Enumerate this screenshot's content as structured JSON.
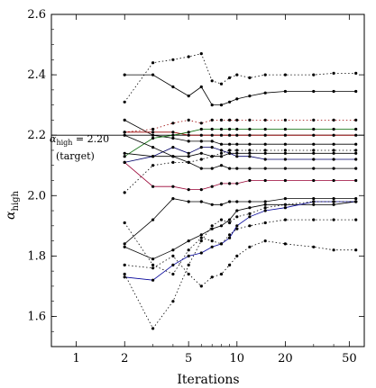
{
  "chart_data": {
    "type": "line",
    "xscale": "log",
    "xlim": [
      0.7,
      62
    ],
    "ylim": [
      1.5,
      2.6
    ],
    "xticks": [
      1,
      2,
      5,
      10,
      20,
      50
    ],
    "xtick_labels": [
      "1",
      "2",
      "5",
      "10",
      "20",
      "50"
    ],
    "yticks": [
      1.6,
      1.8,
      2.0,
      2.2,
      2.4,
      2.6
    ],
    "ytick_labels": [
      "1.6",
      "1.8",
      "2.0",
      "2.2",
      "2.4",
      "2.6"
    ],
    "xlabel": "Iterations",
    "ylabel_base": "α",
    "ylabel_sub": "high",
    "grid": false,
    "target": {
      "value": 2.2,
      "label_prefix": "α",
      "label_sub": "high",
      "label_value": " = 2.20",
      "label_note": "(target)"
    },
    "series": [
      {
        "style": "solid",
        "color": "#000000",
        "x": [
          2,
          3,
          4,
          5,
          6,
          7,
          8,
          9,
          10,
          12,
          15,
          20,
          30,
          40,
          55
        ],
        "y": [
          2.4,
          2.4,
          2.36,
          2.33,
          2.36,
          2.3,
          2.3,
          2.31,
          2.32,
          2.33,
          2.34,
          2.345,
          2.345,
          2.345,
          2.345
        ]
      },
      {
        "style": "dotted",
        "color": "#000000",
        "x": [
          2,
          3,
          4,
          5,
          6,
          7,
          8,
          9,
          10,
          12,
          15,
          20,
          30,
          40,
          55
        ],
        "y": [
          2.31,
          2.44,
          2.45,
          2.46,
          2.47,
          2.38,
          2.37,
          2.39,
          2.4,
          2.39,
          2.4,
          2.4,
          2.4,
          2.405,
          2.405
        ]
      },
      {
        "style": "solid",
        "color": "#000000",
        "x": [
          2,
          3,
          4,
          5,
          6,
          7,
          8,
          9,
          10,
          12,
          15,
          20,
          30,
          40,
          55
        ],
        "y": [
          2.25,
          2.2,
          2.19,
          2.18,
          2.18,
          2.18,
          2.17,
          2.17,
          2.17,
          2.17,
          2.17,
          2.17,
          2.17,
          2.17,
          2.17
        ]
      },
      {
        "style": "solid",
        "color": "#990000",
        "x": [
          2,
          3,
          4,
          5,
          6,
          7,
          8,
          9,
          10,
          12,
          15,
          20,
          30,
          40,
          55
        ],
        "y": [
          2.21,
          2.21,
          2.21,
          2.2,
          2.2,
          2.2,
          2.2,
          2.2,
          2.2,
          2.2,
          2.2,
          2.2,
          2.2,
          2.2,
          2.2
        ]
      },
      {
        "style": "dotted",
        "color": "#990000",
        "x": [
          2,
          3,
          4,
          5,
          6,
          7,
          8,
          9,
          10,
          12,
          15,
          20,
          30,
          40,
          55
        ],
        "y": [
          2.21,
          2.22,
          2.24,
          2.25,
          2.24,
          2.25,
          2.25,
          2.25,
          2.25,
          2.25,
          2.25,
          2.25,
          2.25,
          2.25,
          2.25
        ]
      },
      {
        "style": "solid",
        "color": "#006600",
        "x": [
          2,
          3,
          4,
          5,
          6,
          7,
          8,
          9,
          10,
          12,
          15,
          20,
          30,
          40,
          55
        ],
        "y": [
          2.13,
          2.19,
          2.2,
          2.21,
          2.22,
          2.22,
          2.22,
          2.22,
          2.22,
          2.22,
          2.22,
          2.22,
          2.22,
          2.22,
          2.22
        ]
      },
      {
        "style": "solid",
        "color": "#000000",
        "x": [
          2,
          3,
          4,
          5,
          6,
          7,
          8,
          9,
          10,
          12,
          15,
          20,
          30,
          40,
          55
        ],
        "y": [
          2.14,
          2.13,
          2.13,
          2.13,
          2.14,
          2.13,
          2.13,
          2.14,
          2.14,
          2.14,
          2.14,
          2.14,
          2.14,
          2.14,
          2.14
        ]
      },
      {
        "style": "solid",
        "color": "#000066",
        "x": [
          2,
          3,
          4,
          5,
          6,
          7,
          8,
          9,
          10,
          12,
          15,
          20,
          30,
          40,
          55
        ],
        "y": [
          2.11,
          2.13,
          2.16,
          2.14,
          2.16,
          2.16,
          2.15,
          2.14,
          2.13,
          2.13,
          2.12,
          2.12,
          2.12,
          2.12,
          2.12
        ]
      },
      {
        "style": "solid",
        "color": "#000000",
        "x": [
          2,
          3,
          4,
          5,
          6,
          7,
          8,
          9,
          10,
          12,
          15,
          20,
          30,
          40,
          55
        ],
        "y": [
          2.2,
          2.16,
          2.13,
          2.11,
          2.09,
          2.09,
          2.1,
          2.09,
          2.09,
          2.09,
          2.09,
          2.09,
          2.09,
          2.09,
          2.09
        ]
      },
      {
        "style": "dotted",
        "color": "#000000",
        "x": [
          2,
          3,
          4,
          5,
          6,
          7,
          8,
          9,
          10,
          12,
          15,
          20,
          30,
          40,
          55
        ],
        "y": [
          2.01,
          2.1,
          2.11,
          2.11,
          2.12,
          2.13,
          2.14,
          2.15,
          2.15,
          2.15,
          2.15,
          2.15,
          2.15,
          2.15,
          2.15
        ]
      },
      {
        "style": "solid",
        "color": "#990033",
        "x": [
          2,
          3,
          4,
          5,
          6,
          7,
          8,
          9,
          10,
          12,
          15,
          20,
          30,
          40,
          55
        ],
        "y": [
          2.11,
          2.03,
          2.03,
          2.02,
          2.02,
          2.03,
          2.04,
          2.04,
          2.04,
          2.05,
          2.05,
          2.05,
          2.05,
          2.05,
          2.05
        ]
      },
      {
        "style": "solid",
        "color": "#000000",
        "x": [
          2,
          3,
          4,
          5,
          6,
          7,
          8,
          9,
          10,
          12,
          15,
          20,
          30,
          40,
          55
        ],
        "y": [
          1.84,
          1.92,
          1.99,
          1.98,
          1.98,
          1.97,
          1.97,
          1.98,
          1.98,
          1.98,
          1.98,
          1.99,
          1.99,
          1.99,
          1.99
        ]
      },
      {
        "style": "solid",
        "color": "#000000",
        "x": [
          2,
          3,
          4,
          5,
          6,
          7,
          8,
          9,
          10,
          12,
          15,
          20,
          30,
          40,
          55
        ],
        "y": [
          1.83,
          1.79,
          1.82,
          1.85,
          1.87,
          1.89,
          1.9,
          1.92,
          1.95,
          1.96,
          1.97,
          1.97,
          1.97,
          1.97,
          1.98
        ]
      },
      {
        "style": "dotted",
        "color": "#000000",
        "x": [
          2,
          3,
          4,
          5,
          6,
          7,
          8,
          9,
          10,
          12,
          15,
          20,
          30,
          40,
          55
        ],
        "y": [
          1.91,
          1.77,
          1.74,
          1.82,
          1.86,
          1.85,
          1.84,
          1.87,
          1.89,
          1.9,
          1.91,
          1.92,
          1.92,
          1.92,
          1.92
        ]
      },
      {
        "style": "solid",
        "color": "#000099",
        "x": [
          2,
          3,
          4,
          5,
          6,
          7,
          8,
          9,
          10,
          12,
          15,
          20,
          30,
          40,
          55
        ],
        "y": [
          1.73,
          1.72,
          1.77,
          1.8,
          1.81,
          1.83,
          1.84,
          1.86,
          1.9,
          1.93,
          1.95,
          1.96,
          1.98,
          1.98,
          1.98
        ]
      },
      {
        "style": "dotted",
        "color": "#000000",
        "x": [
          2,
          3,
          4,
          5,
          6,
          7,
          8,
          9,
          10,
          12,
          15,
          20,
          30,
          40,
          55
        ],
        "y": [
          1.77,
          1.76,
          1.8,
          1.74,
          1.7,
          1.73,
          1.74,
          1.77,
          1.8,
          1.83,
          1.85,
          1.84,
          1.83,
          1.82,
          1.82
        ]
      },
      {
        "style": "dotted",
        "color": "#000000",
        "x": [
          2,
          3,
          4,
          5,
          6,
          7,
          8,
          9,
          10,
          12,
          15,
          20,
          30,
          40,
          55
        ],
        "y": [
          1.74,
          1.56,
          1.65,
          1.77,
          1.85,
          1.9,
          1.92,
          1.91,
          1.93,
          1.94,
          1.96,
          1.97,
          1.98,
          1.98,
          1.98
        ]
      }
    ]
  }
}
